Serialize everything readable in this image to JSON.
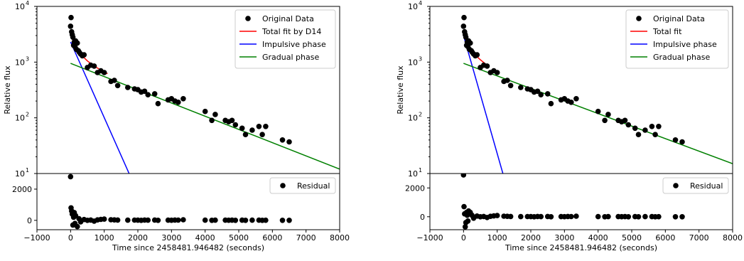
{
  "chart_data": [
    {
      "type": "scatter",
      "panel": "left",
      "xlabel": "Time since 2458481.946482 (seconds)",
      "ylabel": "Relative flux",
      "xlim": [
        -1000,
        8000
      ],
      "ylim": [
        10,
        10000
      ],
      "yscale": "log",
      "x_ticks": [
        "−1000",
        "0",
        "1000",
        "2000",
        "3000",
        "4000",
        "5000",
        "6000",
        "7000",
        "8000"
      ],
      "y_ticks": [
        "10",
        "10",
        "10",
        "10"
      ],
      "y_tick_exponents": [
        "1",
        "2",
        "3",
        "4"
      ],
      "legend_position": "top-right",
      "series": [
        {
          "name": "Original Data",
          "kind": "points",
          "color": "#000000",
          "x": [
            0,
            15,
            30,
            50,
            70,
            90,
            110,
            130,
            150,
            170,
            200,
            230,
            260,
            300,
            350,
            400,
            500,
            600,
            700,
            800,
            900,
            1000,
            1200,
            1300,
            1400,
            1700,
            1900,
            2000,
            2100,
            2200,
            2300,
            2500,
            2600,
            2900,
            3000,
            3100,
            3200,
            3350,
            4000,
            4200,
            4300,
            4600,
            4700,
            4800,
            4900,
            5100,
            5200,
            5400,
            5600,
            5700,
            5800,
            6300,
            6500
          ],
          "y": [
            4400,
            6300,
            3500,
            3100,
            2800,
            2000,
            2300,
            1900,
            2400,
            1700,
            2200,
            1600,
            1500,
            1400,
            1300,
            1350,
            800,
            880,
            850,
            650,
            700,
            650,
            450,
            470,
            380,
            350,
            330,
            320,
            290,
            300,
            260,
            270,
            180,
            210,
            220,
            200,
            190,
            220,
            130,
            90,
            115,
            90,
            85,
            90,
            75,
            65,
            50,
            60,
            70,
            50,
            70,
            40,
            37
          ]
        },
        {
          "name": "Total fit by D14",
          "kind": "line",
          "color": "#ff0000",
          "x": [
            0,
            100,
            200,
            300,
            400,
            500,
            700,
            900,
            1100
          ],
          "y": [
            3200,
            2200,
            1700,
            1400,
            1200,
            1050,
            850,
            720,
            620
          ]
        },
        {
          "name": "Impulsive phase",
          "kind": "line",
          "color": "#0000ff",
          "x": [
            0,
            1740
          ],
          "y": [
            2300,
            10
          ]
        },
        {
          "name": "Gradual phase",
          "kind": "line",
          "color": "#008000",
          "x": [
            0,
            8000
          ],
          "y": [
            950,
            12
          ]
        }
      ],
      "residual": {
        "ylim": [
          -600,
          3000
        ],
        "y_ticks": [
          "0",
          "2000"
        ],
        "legend": "Residual",
        "x": [
          0,
          15,
          30,
          50,
          70,
          90,
          110,
          130,
          150,
          200,
          250,
          300,
          400,
          500,
          600,
          700,
          800,
          900,
          1000,
          1200,
          1300,
          1400,
          1700,
          1900,
          2000,
          2100,
          2200,
          2300,
          2500,
          2600,
          2900,
          3000,
          3100,
          3200,
          3350,
          4000,
          4200,
          4300,
          4600,
          4700,
          4800,
          4900,
          5100,
          5200,
          5400,
          5600,
          5700,
          5800,
          6300,
          6500
        ],
        "y": [
          2800,
          800,
          600,
          400,
          -300,
          200,
          500,
          -200,
          300,
          -400,
          100,
          -100,
          50,
          0,
          20,
          -50,
          30,
          60,
          80,
          40,
          30,
          20,
          10,
          15,
          10,
          0,
          20,
          10,
          20,
          0,
          10,
          5,
          20,
          15,
          40,
          10,
          0,
          10,
          10,
          5,
          10,
          0,
          10,
          0,
          10,
          10,
          0,
          5,
          0,
          0
        ]
      }
    },
    {
      "type": "scatter",
      "panel": "right",
      "xlabel": "Time since 2458481.946482 (seconds)",
      "ylabel": "Relative flux",
      "xlim": [
        -1000,
        8000
      ],
      "ylim": [
        10,
        10000
      ],
      "yscale": "log",
      "x_ticks": [
        "−1000",
        "0",
        "1000",
        "2000",
        "3000",
        "4000",
        "5000",
        "6000",
        "7000",
        "8000"
      ],
      "y_ticks": [
        "10",
        "10",
        "10",
        "10"
      ],
      "y_tick_exponents": [
        "1",
        "2",
        "3",
        "4"
      ],
      "legend_position": "top-right",
      "series": [
        {
          "name": "Original Data",
          "kind": "points",
          "color": "#000000",
          "x": [
            0,
            15,
            30,
            50,
            70,
            90,
            110,
            130,
            150,
            170,
            200,
            230,
            260,
            300,
            350,
            400,
            500,
            600,
            700,
            800,
            900,
            1000,
            1200,
            1300,
            1400,
            1700,
            1900,
            2000,
            2100,
            2200,
            2300,
            2500,
            2600,
            2900,
            3000,
            3100,
            3200,
            3350,
            4000,
            4200,
            4300,
            4600,
            4700,
            4800,
            4900,
            5100,
            5200,
            5400,
            5600,
            5700,
            5800,
            6300,
            6500
          ],
          "y": [
            4400,
            6300,
            3500,
            3100,
            2800,
            2000,
            2300,
            1900,
            2400,
            1700,
            2200,
            1600,
            1500,
            1400,
            1300,
            1350,
            800,
            880,
            850,
            650,
            700,
            650,
            450,
            470,
            380,
            350,
            330,
            320,
            290,
            300,
            260,
            270,
            180,
            210,
            220,
            200,
            190,
            220,
            130,
            90,
            115,
            90,
            85,
            90,
            75,
            65,
            50,
            60,
            70,
            50,
            70,
            40,
            37
          ]
        },
        {
          "name": "Total fit",
          "kind": "line",
          "color": "#ff0000",
          "x": [
            0,
            50,
            100,
            150,
            200,
            250,
            300,
            400,
            500,
            700
          ],
          "y": [
            3800,
            3000,
            2500,
            2100,
            1800,
            1600,
            1450,
            1250,
            1100,
            880
          ]
        },
        {
          "name": "Impulsive phase",
          "kind": "line",
          "color": "#0000ff",
          "x": [
            0,
            1170
          ],
          "y": [
            3000,
            10
          ]
        },
        {
          "name": "Gradual phase",
          "kind": "line",
          "color": "#008000",
          "x": [
            0,
            8000
          ],
          "y": [
            950,
            15
          ]
        }
      ],
      "residual": {
        "ylim": [
          -900,
          3000
        ],
        "y_ticks": [
          "0",
          "2000"
        ],
        "legend": "Residual",
        "x": [
          0,
          15,
          30,
          50,
          70,
          90,
          110,
          130,
          150,
          200,
          250,
          300,
          400,
          500,
          600,
          700,
          800,
          900,
          1000,
          1200,
          1300,
          1400,
          1700,
          1900,
          2000,
          2100,
          2200,
          2300,
          2500,
          2600,
          2900,
          3000,
          3100,
          3200,
          3350,
          4000,
          4200,
          4300,
          4600,
          4700,
          4800,
          4900,
          5100,
          5200,
          5400,
          5600,
          5700,
          5800,
          6300,
          6500
        ],
        "y": [
          2900,
          700,
          200,
          -700,
          -400,
          300,
          100,
          -300,
          400,
          300,
          100,
          -100,
          50,
          0,
          20,
          -50,
          30,
          60,
          80,
          40,
          30,
          20,
          10,
          15,
          10,
          0,
          20,
          10,
          20,
          0,
          10,
          5,
          20,
          15,
          40,
          10,
          0,
          10,
          10,
          5,
          10,
          0,
          10,
          0,
          10,
          10,
          0,
          5,
          0,
          0
        ]
      }
    }
  ]
}
